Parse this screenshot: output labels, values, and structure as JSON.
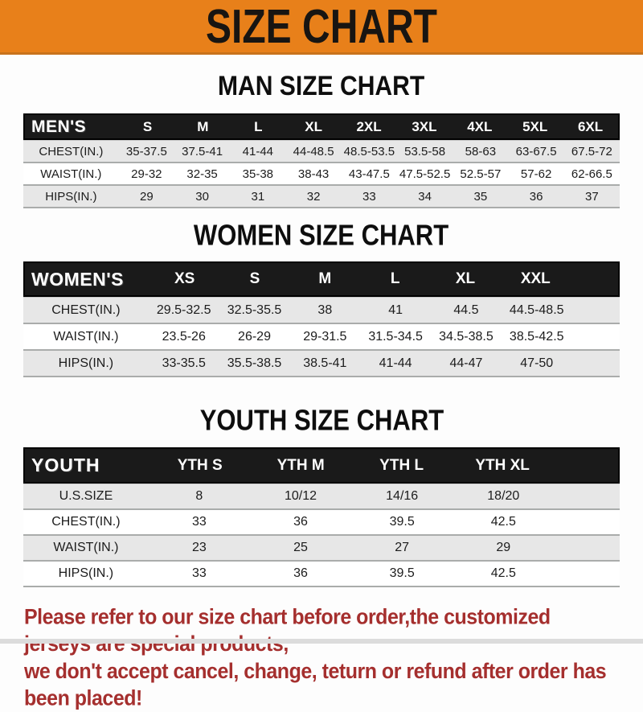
{
  "colors": {
    "banner_bg": "#e8801a",
    "bar_bg": "#1a1a1a",
    "stripe": "#e7e7e7",
    "note_color": "#a52f2e"
  },
  "banner": {
    "title": "SIZE CHART"
  },
  "sections": [
    {
      "heading": "MAN SIZE CHART",
      "header_label": "MEN'S",
      "columns": [
        "S",
        "M",
        "L",
        "XL",
        "2XL",
        "3XL",
        "4XL",
        "5XL",
        "6XL"
      ],
      "rows": [
        {
          "label": "CHEST(IN.)",
          "values": [
            "35-37.5",
            "37.5-41",
            "41-44",
            "44-48.5",
            "48.5-53.5",
            "53.5-58",
            "58-63",
            "63-67.5",
            "67.5-72"
          ]
        },
        {
          "label": "WAIST(IN.)",
          "values": [
            "29-32",
            "32-35",
            "35-38",
            "38-43",
            "43-47.5",
            "47.5-52.5",
            "52.5-57",
            "57-62",
            "62-66.5"
          ]
        },
        {
          "label": "HIPS(IN.)",
          "values": [
            "29",
            "30",
            "31",
            "32",
            "33",
            "34",
            "35",
            "36",
            "37"
          ]
        }
      ]
    },
    {
      "heading": "WOMEN SIZE CHART",
      "header_label": "WOMEN'S",
      "columns": [
        "XS",
        "S",
        "M",
        "L",
        "XL",
        "XXL"
      ],
      "rows": [
        {
          "label": "CHEST(IN.)",
          "values": [
            "29.5-32.5",
            "32.5-35.5",
            "38",
            "41",
            "44.5",
            "44.5-48.5"
          ]
        },
        {
          "label": "WAIST(IN.)",
          "values": [
            "23.5-26",
            "26-29",
            "29-31.5",
            "31.5-34.5",
            "34.5-38.5",
            "38.5-42.5"
          ]
        },
        {
          "label": "HIPS(IN.)",
          "values": [
            "33-35.5",
            "35.5-38.5",
            "38.5-41",
            "41-44",
            "44-47",
            "47-50"
          ]
        }
      ]
    },
    {
      "heading": "YOUTH SIZE CHART",
      "header_label": "YOUTH",
      "columns": [
        "YTH S",
        "YTH M",
        "YTH L",
        "YTH XL"
      ],
      "rows": [
        {
          "label": "U.S.SIZE",
          "values": [
            "8",
            "10/12",
            "14/16",
            "18/20"
          ]
        },
        {
          "label": "CHEST(IN.)",
          "values": [
            "33",
            "36",
            "39.5",
            "42.5"
          ]
        },
        {
          "label": "WAIST(IN.)",
          "values": [
            "23",
            "25",
            "27",
            "29"
          ]
        },
        {
          "label": "HIPS(IN.)",
          "values": [
            "33",
            "36",
            "39.5",
            "42.5"
          ]
        }
      ]
    }
  ],
  "footer": {
    "line1": "Please refer to our size chart before order,the customized jerseys are special products,",
    "line2": "we don't accept cancel, change, teturn or refund after order has been placed!"
  }
}
